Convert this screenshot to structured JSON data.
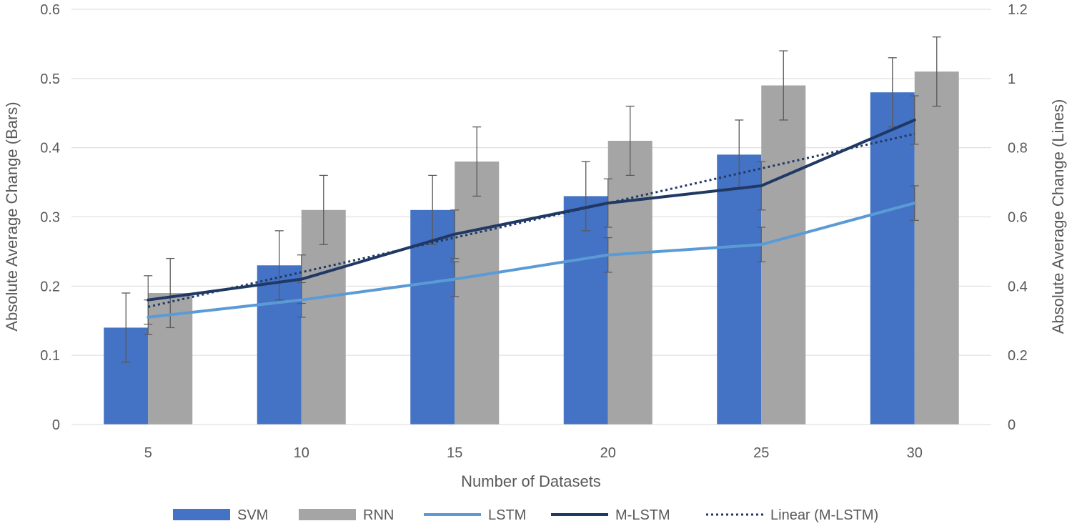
{
  "chart_data": {
    "type": "bar",
    "title": "",
    "xlabel": "Number of Datasets",
    "ylabel": "Absolute Average Change (Bars)",
    "y2label": "Absolute Average Change (Lines)",
    "categories": [
      "5",
      "10",
      "15",
      "20",
      "25",
      "30"
    ],
    "ylim": [
      0,
      0.6
    ],
    "yticks": [
      "0",
      "0.1",
      "0.2",
      "0.3",
      "0.4",
      "0.5",
      "0.6"
    ],
    "y2lim": [
      0,
      1.2
    ],
    "y2ticks": [
      "0",
      "0.2",
      "0.4",
      "0.6",
      "0.8",
      "1",
      "1.2"
    ],
    "grid": true,
    "legend_position": "bottom",
    "bar_series": [
      {
        "name": "SVM",
        "color": "#4472C4",
        "values": [
          0.14,
          0.23,
          0.31,
          0.33,
          0.39,
          0.48
        ],
        "errors": [
          0.05,
          0.05,
          0.05,
          0.05,
          0.05,
          0.05
        ]
      },
      {
        "name": "RNN",
        "color": "#A5A5A5",
        "values": [
          0.19,
          0.31,
          0.38,
          0.41,
          0.49,
          0.51
        ],
        "errors": [
          0.05,
          0.05,
          0.05,
          0.05,
          0.05,
          0.05
        ]
      }
    ],
    "line_series": [
      {
        "name": "LSTM",
        "color": "#5B9BD5",
        "axis": "right",
        "values": [
          0.31,
          0.36,
          0.42,
          0.49,
          0.52,
          0.64
        ],
        "errors": [
          0.05,
          0.05,
          0.05,
          0.05,
          0.05,
          0.05
        ]
      },
      {
        "name": "M-LSTM",
        "color": "#203864",
        "axis": "right",
        "values": [
          0.36,
          0.42,
          0.55,
          0.64,
          0.69,
          0.88
        ],
        "errors": [
          0.07,
          0.07,
          0.07,
          0.07,
          0.07,
          0.07
        ]
      }
    ],
    "trendline": {
      "name": "Linear (M-LSTM)",
      "color": "#203864",
      "style": "dotted",
      "axis": "right",
      "start": 0.34,
      "end": 0.84
    }
  }
}
